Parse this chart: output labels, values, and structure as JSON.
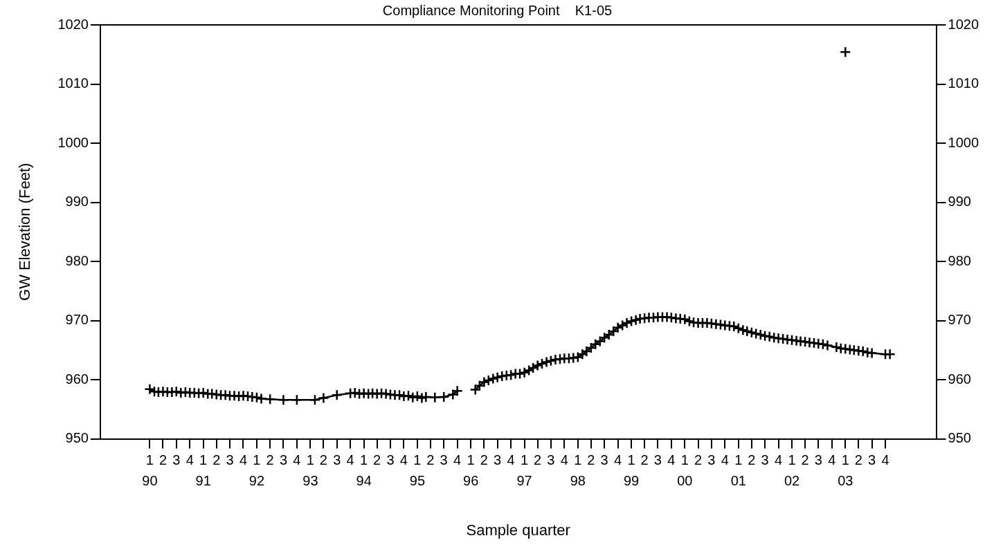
{
  "chart_data": {
    "type": "line",
    "title": "Compliance Monitoring Point    K1-05",
    "xlabel": "Sample quarter",
    "ylabel": "GW Elevation (Feet)",
    "marker": "cross",
    "line_style": "solid",
    "xlim": [
      "1989-01-28",
      "2004-09-12"
    ],
    "xticks": [
      {
        "value": "1990-01",
        "label": "1\n90"
      },
      {
        "value": "1990-04",
        "label": "2"
      },
      {
        "value": "1990-07",
        "label": "3"
      },
      {
        "value": "1990-10",
        "label": "4"
      },
      {
        "value": "1991-01",
        "label": "1\n91"
      },
      {
        "value": "1991-04",
        "label": "2"
      },
      {
        "value": "1991-07",
        "label": "3"
      },
      {
        "value": "1991-10",
        "label": "4"
      },
      {
        "value": "1992-01",
        "label": "1\n92"
      },
      {
        "value": "1992-04",
        "label": "2"
      },
      {
        "value": "1992-07",
        "label": "3"
      },
      {
        "value": "1992-10",
        "label": "4"
      },
      {
        "value": "1993-01",
        "label": "1\n93"
      },
      {
        "value": "1993-04",
        "label": "2"
      },
      {
        "value": "1993-07",
        "label": "3"
      },
      {
        "value": "1993-10",
        "label": "4"
      },
      {
        "value": "1994-01",
        "label": "1\n94"
      },
      {
        "value": "1994-04",
        "label": "2"
      },
      {
        "value": "1994-07",
        "label": "3"
      },
      {
        "value": "1994-10",
        "label": "4"
      },
      {
        "value": "1995-01",
        "label": "1\n95"
      },
      {
        "value": "1995-04",
        "label": "2"
      },
      {
        "value": "1995-07",
        "label": "3"
      },
      {
        "value": "1995-10",
        "label": "4"
      },
      {
        "value": "1996-01",
        "label": "1\n96"
      },
      {
        "value": "1996-04",
        "label": "2"
      },
      {
        "value": "1996-07",
        "label": "3"
      },
      {
        "value": "1996-10",
        "label": "4"
      },
      {
        "value": "1997-01",
        "label": "1\n97"
      },
      {
        "value": "1997-04",
        "label": "2"
      },
      {
        "value": "1997-07",
        "label": "3"
      },
      {
        "value": "1997-10",
        "label": "4"
      },
      {
        "value": "1998-01",
        "label": "1\n98"
      },
      {
        "value": "1998-04",
        "label": "2"
      },
      {
        "value": "1998-07",
        "label": "3"
      },
      {
        "value": "1998-10",
        "label": "4"
      },
      {
        "value": "1999-01",
        "label": "1\n99"
      },
      {
        "value": "1999-04",
        "label": "2"
      },
      {
        "value": "1999-07",
        "label": "3"
      },
      {
        "value": "1999-10",
        "label": "4"
      },
      {
        "value": "2000-01",
        "label": "1\n00"
      },
      {
        "value": "2000-04",
        "label": "2"
      },
      {
        "value": "2000-07",
        "label": "3"
      },
      {
        "value": "2000-10",
        "label": "4"
      },
      {
        "value": "2001-01",
        "label": "1\n01"
      },
      {
        "value": "2001-04",
        "label": "2"
      },
      {
        "value": "2001-07",
        "label": "3"
      },
      {
        "value": "2001-10",
        "label": "4"
      },
      {
        "value": "2002-01",
        "label": "1\n02"
      },
      {
        "value": "2002-04",
        "label": "2"
      },
      {
        "value": "2002-07",
        "label": "3"
      },
      {
        "value": "2002-10",
        "label": "4"
      },
      {
        "value": "2003-01",
        "label": "1\n03"
      },
      {
        "value": "2003-04",
        "label": "2"
      },
      {
        "value": "2003-07",
        "label": "3"
      },
      {
        "value": "2003-10",
        "label": "4"
      }
    ],
    "ylim": [
      950,
      1020
    ],
    "yticks": [
      950,
      960,
      970,
      980,
      990,
      1000,
      1010,
      1020
    ],
    "y2lim": [
      950,
      1020
    ],
    "y2ticks": [
      950,
      960,
      970,
      980,
      990,
      1000,
      1010,
      1020
    ],
    "series": [
      {
        "color": "#000000",
        "x": [
          "1990-01",
          "1990-02",
          "1990-03",
          "1990-04",
          "1990-05",
          "1990-06",
          "1990-07",
          "1990-08",
          "1990-09",
          "1990-10",
          "1990-11",
          "1990-12",
          "1991-01",
          "1991-02",
          "1991-03",
          "1991-04",
          "1991-05",
          "1991-06",
          "1991-07",
          "1991-08",
          "1991-09",
          "1991-10",
          "1991-11",
          "1991-12",
          "1992-01",
          "1992-02",
          "1992-04",
          "1992-07",
          "1992-10",
          "1993-02",
          "1993-04",
          "1993-07",
          "1993-10",
          "1993-11",
          "1993-12",
          "1994-01",
          "1994-02",
          "1994-03",
          "1994-04",
          "1994-05",
          "1994-06",
          "1994-07",
          "1994-08",
          "1994-09",
          "1994-10",
          "1994-11",
          "1994-12",
          "1995-01",
          "1995-02",
          "1995-03",
          "1995-05",
          "1995-07",
          "1995-09",
          "1995-10",
          "1995-12",
          "1996-02",
          "1996-03",
          "1996-04",
          "1996-05",
          "1996-06",
          "1996-07",
          "1996-08",
          "1996-09",
          "1996-10",
          "1996-11",
          "1996-12",
          "1997-01",
          "1997-02",
          "1997-03",
          "1997-04",
          "1997-05",
          "1997-06",
          "1997-07",
          "1997-08",
          "1997-09",
          "1997-10",
          "1997-11",
          "1997-12",
          "1998-01",
          "1998-02",
          "1998-03",
          "1998-04",
          "1998-05",
          "1998-06",
          "1998-07",
          "1998-08",
          "1998-09",
          "1998-10",
          "1998-11",
          "1998-12",
          "1999-01",
          "1999-02",
          "1999-03",
          "1999-04",
          "1999-05",
          "1999-06",
          "1999-07",
          "1999-08",
          "1999-09",
          "1999-10",
          "1999-11",
          "1999-12",
          "2000-01",
          "2000-02",
          "2000-03",
          "2000-04",
          "2000-05",
          "2000-06",
          "2000-07",
          "2000-08",
          "2000-09",
          "2000-10",
          "2000-11",
          "2000-12",
          "2001-01",
          "2001-02",
          "2001-03",
          "2001-04",
          "2001-05",
          "2001-06",
          "2001-07",
          "2001-08",
          "2001-09",
          "2001-10",
          "2001-11",
          "2001-12",
          "2002-01",
          "2002-02",
          "2002-03",
          "2002-04",
          "2002-05",
          "2002-06",
          "2002-07",
          "2002-08",
          "2002-09",
          "2002-11",
          "2002-12",
          "2003-01",
          "2003-02",
          "2003-03",
          "2003-04",
          "2003-05",
          "2003-06",
          "2003-07",
          "2003-10",
          "2003-11"
        ],
        "values": [
          958.4,
          958.0,
          957.9,
          958.0,
          957.9,
          957.9,
          958.0,
          957.8,
          957.9,
          957.8,
          957.8,
          957.7,
          957.8,
          957.6,
          957.6,
          957.5,
          957.4,
          957.4,
          957.3,
          957.3,
          957.2,
          957.3,
          957.2,
          957.1,
          957.0,
          956.8,
          956.7,
          956.6,
          956.6,
          956.6,
          956.9,
          957.4,
          957.7,
          957.8,
          957.6,
          957.7,
          957.6,
          957.7,
          957.6,
          957.7,
          957.6,
          957.5,
          957.4,
          957.4,
          957.2,
          957.3,
          957.0,
          957.2,
          956.9,
          957.1,
          957.0,
          957.1,
          957.5,
          958.1,
          null,
          958.3,
          959.0,
          959.6,
          959.9,
          960.2,
          960.4,
          960.6,
          960.7,
          960.8,
          961.0,
          961.0,
          961.2,
          961.6,
          962.0,
          962.4,
          962.7,
          963.0,
          963.2,
          963.4,
          963.5,
          963.6,
          963.6,
          963.7,
          963.8,
          964.3,
          964.8,
          965.4,
          966.0,
          966.5,
          967.1,
          967.6,
          968.2,
          968.8,
          969.2,
          969.6,
          969.9,
          970.1,
          970.3,
          970.4,
          970.5,
          970.5,
          970.6,
          970.6,
          970.6,
          970.5,
          970.4,
          970.3,
          970.2,
          969.9,
          969.7,
          969.6,
          969.6,
          969.6,
          969.5,
          969.4,
          969.3,
          969.2,
          969.1,
          969.0,
          968.7,
          968.4,
          968.2,
          968.0,
          967.8,
          967.6,
          967.4,
          967.3,
          967.1,
          967.0,
          966.9,
          966.8,
          966.7,
          966.6,
          966.5,
          966.4,
          966.3,
          966.2,
          966.1,
          966.0,
          965.8,
          965.5,
          965.3,
          965.2,
          965.1,
          965.0,
          964.9,
          964.8,
          964.6,
          964.5,
          964.3,
          964.3
        ]
      },
      {
        "type": "scatter",
        "color": "#000000",
        "x": [
          "2003-01"
        ],
        "values": [
          1015.4
        ]
      }
    ]
  }
}
